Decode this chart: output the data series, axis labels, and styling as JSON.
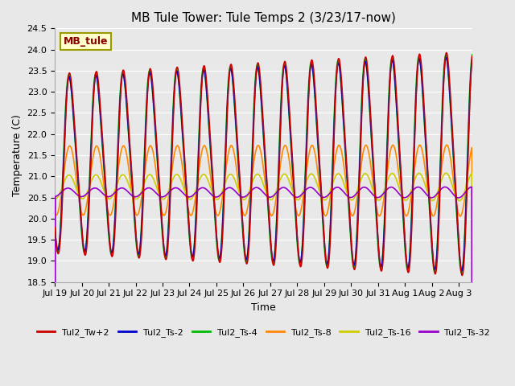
{
  "title": "MB Tule Tower: Tule Temps 2 (3/23/17-now)",
  "xlabel": "Time",
  "ylabel": "Temperature (C)",
  "ylim": [
    18.5,
    24.5
  ],
  "xlim_days": [
    0,
    15.5
  ],
  "x_tick_labels": [
    "Jul 19",
    "Jul 20",
    "Jul 21",
    "Jul 22",
    "Jul 23",
    "Jul 24",
    "Jul 25",
    "Jul 26",
    "Jul 27",
    "Jul 28",
    "Jul 29",
    "Jul 30",
    "Jul 31",
    "Aug 1",
    "Aug 2",
    "Aug 3"
  ],
  "x_tick_positions": [
    0,
    1,
    2,
    3,
    4,
    5,
    6,
    7,
    8,
    9,
    10,
    11,
    12,
    13,
    14,
    15
  ],
  "yticks": [
    18.5,
    19.0,
    19.5,
    20.0,
    20.5,
    21.0,
    21.5,
    22.0,
    22.5,
    23.0,
    23.5,
    24.0,
    24.5
  ],
  "series_names": [
    "Tul2_Tw+2",
    "Tul2_Ts-2",
    "Tul2_Ts-4",
    "Tul2_Ts-8",
    "Tul2_Ts-16",
    "Tul2_Ts-32"
  ],
  "series_colors": [
    "#cc0000",
    "#0000cc",
    "#00bb00",
    "#ff8800",
    "#cccc00",
    "#9900cc"
  ],
  "series_lw": [
    1.2,
    1.2,
    1.2,
    1.2,
    1.2,
    1.2
  ],
  "bg_color": "#e8e8e8",
  "plot_bg_color": "#e8e8e8",
  "grid_color": "#ffffff",
  "tag_label": "MB_tule",
  "tag_bg": "#ffffcc",
  "tag_edge": "#999900",
  "tag_text_color": "#880000",
  "title_fontsize": 11,
  "axis_fontsize": 9,
  "tick_fontsize": 8,
  "legend_fontsize": 8,
  "figwidth": 6.4,
  "figheight": 4.8,
  "dpi": 100
}
